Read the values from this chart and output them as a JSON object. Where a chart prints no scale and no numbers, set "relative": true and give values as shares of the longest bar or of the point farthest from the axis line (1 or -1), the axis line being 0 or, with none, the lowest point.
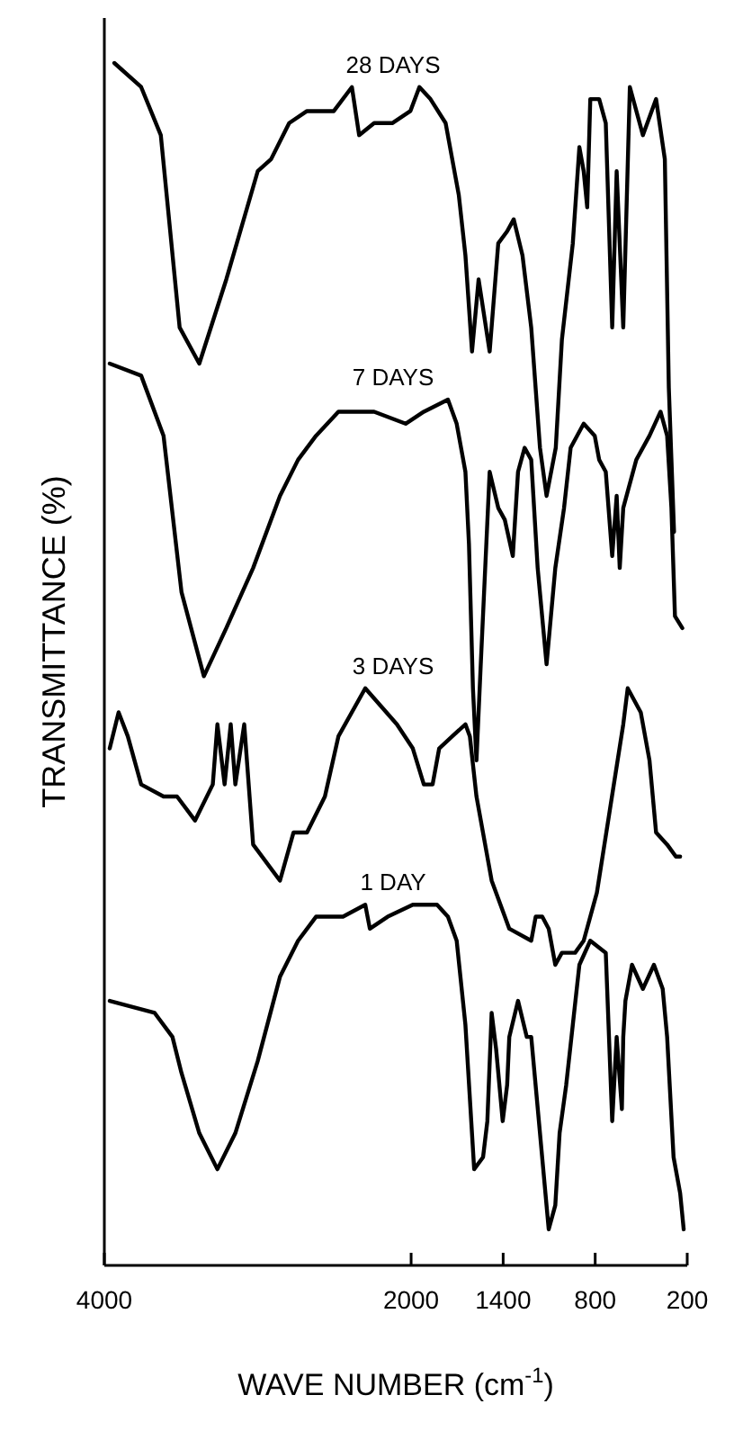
{
  "chart_data": {
    "type": "line",
    "relative": true,
    "xlabel": "WAVE NUMBER (cm$^{-1}$)",
    "ylabel": "TRANSMITTANCE (%)",
    "xlim": [
      4000,
      200
    ],
    "xticks": [
      4000,
      2000,
      1400,
      800,
      200
    ],
    "series": [
      {
        "name": "28 DAYS",
        "color": "#000000",
        "x": [
          3935,
          3760,
          3632,
          3509,
          3381,
          3205,
          3000,
          2913,
          2795,
          2679,
          2504,
          2386,
          2339,
          2241,
          2123,
          2005,
          1946,
          1874,
          1775,
          1689,
          1646,
          1603,
          1560,
          1488,
          1432,
          1374,
          1331,
          1274,
          1217,
          1160,
          1117,
          1057,
          1017,
          946,
          903,
          875,
          852,
          832,
          774,
          731,
          689,
          660,
          617,
          574,
          489,
          403,
          346,
          320,
          286
        ],
        "values": [
          1.0,
          0.98,
          0.94,
          0.78,
          0.75,
          0.82,
          0.91,
          0.92,
          0.95,
          0.96,
          0.96,
          0.98,
          0.94,
          0.95,
          0.95,
          0.96,
          0.98,
          0.97,
          0.95,
          0.89,
          0.84,
          0.76,
          0.82,
          0.76,
          0.85,
          0.86,
          0.87,
          0.84,
          0.78,
          0.68,
          0.64,
          0.68,
          0.77,
          0.85,
          0.93,
          0.91,
          0.88,
          0.97,
          0.97,
          0.95,
          0.78,
          0.91,
          0.78,
          0.98,
          0.94,
          0.97,
          0.92,
          0.73,
          0.61
        ]
      },
      {
        "name": "7 DAYS",
        "color": "#000000",
        "x": [
          3965,
          3760,
          3614,
          3497,
          3351,
          3205,
          3030,
          2855,
          2737,
          2620,
          2474,
          2241,
          2036,
          1917,
          1760,
          1703,
          1646,
          1623,
          1597,
          1574,
          1546,
          1488,
          1432,
          1389,
          1337,
          1303,
          1260,
          1217,
          1175,
          1117,
          1060,
          1003,
          960,
          875,
          803,
          774,
          731,
          689,
          660,
          640,
          617,
          532,
          446,
          374,
          331,
          303,
          280,
          232
        ],
        "values": [
          0.75,
          0.74,
          0.69,
          0.56,
          0.49,
          0.53,
          0.58,
          0.64,
          0.67,
          0.69,
          0.71,
          0.71,
          0.7,
          0.71,
          0.72,
          0.7,
          0.66,
          0.6,
          0.48,
          0.42,
          0.5,
          0.66,
          0.63,
          0.62,
          0.59,
          0.66,
          0.68,
          0.67,
          0.58,
          0.5,
          0.58,
          0.63,
          0.68,
          0.7,
          0.69,
          0.67,
          0.66,
          0.59,
          0.64,
          0.58,
          0.63,
          0.67,
          0.69,
          0.71,
          0.69,
          0.63,
          0.54,
          0.53
        ]
      },
      {
        "name": "3 DAYS",
        "color": "#000000",
        "x": [
          3965,
          3907,
          3847,
          3760,
          3614,
          3526,
          3409,
          3293,
          3263,
          3216,
          3176,
          3146,
          3088,
          3030,
          2855,
          2767,
          2679,
          2562,
          2474,
          2299,
          2093,
          1989,
          1917,
          1860,
          1817,
          1732,
          1646,
          1617,
          1574,
          1475,
          1360,
          1217,
          1188,
          1145,
          1103,
          1060,
          1017,
          931,
          875,
          789,
          703,
          617,
          588,
          503,
          446,
          403,
          331,
          274,
          246
        ],
        "values": [
          0.43,
          0.46,
          0.44,
          0.4,
          0.39,
          0.39,
          0.37,
          0.4,
          0.45,
          0.4,
          0.45,
          0.4,
          0.45,
          0.35,
          0.32,
          0.36,
          0.36,
          0.39,
          0.44,
          0.48,
          0.45,
          0.43,
          0.4,
          0.4,
          0.43,
          0.44,
          0.45,
          0.44,
          0.39,
          0.32,
          0.28,
          0.27,
          0.29,
          0.29,
          0.28,
          0.25,
          0.26,
          0.26,
          0.27,
          0.31,
          0.38,
          0.45,
          0.48,
          0.46,
          0.42,
          0.36,
          0.35,
          0.34,
          0.34
        ]
      },
      {
        "name": "1 DAY",
        "color": "#000000",
        "x": [
          3965,
          3672,
          3556,
          3497,
          3381,
          3263,
          3146,
          3000,
          2855,
          2737,
          2620,
          2444,
          2299,
          2269,
          2153,
          1989,
          1917,
          1831,
          1760,
          1703,
          1646,
          1589,
          1531,
          1503,
          1475,
          1446,
          1403,
          1374,
          1360,
          1303,
          1246,
          1217,
          1160,
          1103,
          1060,
          1032,
          989,
          946,
          903,
          832,
          731,
          689,
          660,
          626,
          617,
          603,
          560,
          489,
          417,
          360,
          331,
          289,
          246,
          223
        ],
        "values": [
          0.22,
          0.21,
          0.19,
          0.16,
          0.11,
          0.08,
          0.11,
          0.17,
          0.24,
          0.27,
          0.29,
          0.29,
          0.3,
          0.28,
          0.29,
          0.3,
          0.3,
          0.3,
          0.29,
          0.27,
          0.2,
          0.08,
          0.09,
          0.12,
          0.21,
          0.18,
          0.12,
          0.15,
          0.19,
          0.22,
          0.19,
          0.19,
          0.11,
          0.03,
          0.05,
          0.11,
          0.15,
          0.2,
          0.25,
          0.27,
          0.26,
          0.12,
          0.19,
          0.13,
          0.19,
          0.22,
          0.25,
          0.23,
          0.25,
          0.23,
          0.19,
          0.09,
          0.06,
          0.03
        ]
      }
    ]
  }
}
